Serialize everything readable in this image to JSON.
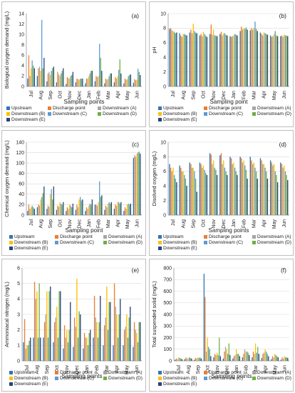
{
  "chart_data": [
    {
      "id": "a",
      "type": "bar",
      "panel_label": "(a)",
      "xlabel": "Sampling points",
      "ylabel": "Biological oxygen demand (mg/L)",
      "ylim": [
        0,
        14
      ],
      "yticks": [
        0,
        2,
        4,
        6,
        8,
        10,
        12,
        14
      ],
      "grid": false,
      "categories": [
        "Jul",
        "Aug",
        "Sep",
        "Oct",
        "Nov",
        "Dec",
        "Jan",
        "Feb",
        "Mar",
        "Apr",
        "May",
        "Jun"
      ],
      "series": [
        {
          "name": "Upstream",
          "values": [
            1.5,
            2.0,
            1.0,
            0.8,
            0.5,
            0.8,
            0.6,
            1.0,
            0.6,
            0.8,
            0.6,
            0.7
          ]
        },
        {
          "name": "Discharge point",
          "values": [
            6.0,
            3.5,
            2.5,
            2.8,
            1.8,
            1.5,
            1.5,
            2.0,
            1.5,
            1.8,
            1.5,
            1.4
          ]
        },
        {
          "name": "Downstream (A)",
          "values": [
            2.0,
            3.8,
            2.8,
            2.3,
            1.6,
            1.4,
            1.5,
            1.8,
            1.3,
            1.5,
            1.3,
            1.2
          ]
        },
        {
          "name": "Downstream (B)",
          "values": [
            3.5,
            3.0,
            2.2,
            2.0,
            1.5,
            1.3,
            2.0,
            2.0,
            1.5,
            2.0,
            1.4,
            1.3
          ]
        },
        {
          "name": "Downstream (C)",
          "values": [
            5.0,
            12.8,
            3.0,
            2.5,
            2.0,
            1.5,
            2.5,
            8.2,
            2.0,
            3.2,
            2.0,
            3.4
          ]
        },
        {
          "name": "Downstream (D)",
          "values": [
            4.0,
            3.5,
            3.5,
            3.0,
            2.2,
            1.5,
            3.0,
            5.5,
            2.5,
            5.2,
            2.2,
            2.8
          ]
        },
        {
          "name": "Downstream (E)",
          "values": [
            3.5,
            5.5,
            3.8,
            3.5,
            2.8,
            1.5,
            3.0,
            3.0,
            2.5,
            2.5,
            2.3,
            2.2
          ]
        }
      ]
    },
    {
      "id": "b",
      "type": "bar",
      "panel_label": "(b)",
      "xlabel": "Sampling point",
      "ylabel": "pH",
      "ylim": [
        0,
        10
      ],
      "yticks": [
        0,
        2,
        4,
        6,
        8,
        10
      ],
      "grid": true,
      "categories": [
        "Jul",
        "Aug",
        "Sep",
        "Oct",
        "Nov",
        "Dec",
        "Jan",
        "Feb",
        "Mar",
        "Apr",
        "May",
        "Jun"
      ],
      "series": [
        {
          "name": "Upstream",
          "values": [
            7.9,
            7.3,
            7.4,
            7.0,
            7.2,
            7.2,
            6.9,
            7.6,
            7.7,
            7.4,
            7.0,
            6.9
          ]
        },
        {
          "name": "Discharge point",
          "values": [
            8.0,
            7.0,
            7.8,
            7.2,
            8.5,
            7.5,
            6.8,
            8.2,
            8.0,
            7.2,
            6.8,
            7.0
          ]
        },
        {
          "name": "Downstream (A)",
          "values": [
            7.7,
            6.8,
            7.3,
            6.9,
            7.1,
            7.0,
            6.9,
            7.8,
            7.8,
            7.0,
            6.9,
            6.8
          ]
        },
        {
          "name": "Downstream (B)",
          "values": [
            7.6,
            7.2,
            8.6,
            7.5,
            7.8,
            7.3,
            7.0,
            8.0,
            8.0,
            7.4,
            7.2,
            7.1
          ]
        },
        {
          "name": "Downstream (C)",
          "values": [
            7.5,
            7.2,
            7.6,
            7.2,
            7.0,
            7.3,
            7.2,
            7.9,
            8.9,
            7.3,
            7.6,
            7.0
          ]
        },
        {
          "name": "Downstream (D)",
          "values": [
            7.3,
            7.1,
            7.4,
            7.0,
            7.0,
            7.1,
            7.1,
            8.1,
            7.9,
            7.2,
            7.0,
            7.0
          ]
        },
        {
          "name": "Downstream (E)",
          "values": [
            7.4,
            7.0,
            7.3,
            6.8,
            6.9,
            7.0,
            7.0,
            7.8,
            7.6,
            7.1,
            6.9,
            6.9
          ]
        }
      ]
    },
    {
      "id": "c",
      "type": "bar",
      "panel_label": "(c)",
      "xlabel": "Sampling point",
      "ylabel": "Chemical oxygen demand (mg/L)",
      "ylim": [
        0,
        140
      ],
      "yticks": [
        0,
        20,
        40,
        60,
        80,
        100,
        120,
        140
      ],
      "grid": true,
      "categories": [
        "Jul",
        "Aug",
        "Sep",
        "Oct",
        "Nov",
        "Dec",
        "Jan",
        "Feb",
        "Mar",
        "Apr",
        "May",
        "Jun"
      ],
      "series": [
        {
          "name": "Upstream",
          "values": [
            8,
            15,
            12,
            10,
            8,
            10,
            8,
            20,
            10,
            12,
            8,
            110
          ]
        },
        {
          "name": "Discharge point",
          "values": [
            20,
            20,
            18,
            18,
            15,
            20,
            15,
            20,
            18,
            20,
            15,
            115
          ]
        },
        {
          "name": "Downstream (A)",
          "values": [
            12,
            18,
            16,
            16,
            12,
            15,
            12,
            18,
            15,
            18,
            12,
            112
          ]
        },
        {
          "name": "Downstream (B)",
          "values": [
            15,
            30,
            40,
            25,
            20,
            30,
            18,
            25,
            22,
            25,
            20,
            118
          ]
        },
        {
          "name": "Downstream (C)",
          "values": [
            18,
            35,
            50,
            22,
            18,
            35,
            22,
            65,
            25,
            25,
            22,
            120
          ]
        },
        {
          "name": "Downstream (D)",
          "values": [
            15,
            42,
            30,
            20,
            15,
            28,
            20,
            35,
            22,
            22,
            20,
            122
          ]
        },
        {
          "name": "Downstream (E)",
          "values": [
            12,
            55,
            55,
            25,
            22,
            30,
            30,
            38,
            25,
            25,
            22,
            118
          ]
        }
      ]
    },
    {
      "id": "d",
      "type": "bar",
      "panel_label": "(d)",
      "xlabel": "Sampling points",
      "ylabel": "Disolved oxygen (mg/L)",
      "ylim": [
        0,
        10
      ],
      "yticks": [
        0,
        2,
        4,
        6,
        8,
        10
      ],
      "grid": true,
      "categories": [
        "Jul",
        "Aug",
        "Sep",
        "Oct",
        "Nov",
        "Dec",
        "Jan",
        "Feb",
        "Mar",
        "Apr",
        "May",
        "Jun"
      ],
      "series": [
        {
          "name": "Upstream",
          "values": [
            7.0,
            6.8,
            7.2,
            7.2,
            8.5,
            8.2,
            8.0,
            8.0,
            8.0,
            7.8,
            7.5,
            7.2
          ]
        },
        {
          "name": "Discharge point",
          "values": [
            6.5,
            6.5,
            7.0,
            7.0,
            8.3,
            8.5,
            7.8,
            7.8,
            7.5,
            7.5,
            7.2,
            7.0
          ]
        },
        {
          "name": "Downstream (A)",
          "values": [
            6.0,
            6.0,
            6.5,
            6.5,
            7.0,
            7.0,
            7.0,
            7.2,
            7.0,
            7.0,
            6.8,
            6.5
          ]
        },
        {
          "name": "Downstream (B)",
          "values": [
            6.5,
            6.0,
            6.5,
            6.8,
            7.5,
            7.5,
            7.2,
            7.5,
            7.2,
            7.0,
            7.0,
            6.8
          ]
        },
        {
          "name": "Downstream (C)",
          "values": [
            5.5,
            5.5,
            6.0,
            6.2,
            6.5,
            6.5,
            6.5,
            6.8,
            6.5,
            6.5,
            6.0,
            6.0
          ]
        },
        {
          "name": "Downstream (D)",
          "values": [
            5.0,
            5.0,
            5.0,
            5.8,
            6.2,
            6.0,
            6.0,
            6.2,
            6.0,
            6.0,
            5.5,
            5.5
          ]
        },
        {
          "name": "Downstream (E)",
          "values": [
            4.5,
            4.0,
            3.2,
            5.5,
            5.5,
            5.5,
            5.5,
            5.0,
            5.0,
            5.0,
            4.5,
            4.8
          ]
        }
      ]
    },
    {
      "id": "e",
      "type": "bar",
      "panel_label": "(e)",
      "xlabel": "Sampling points",
      "ylabel": "Ammoniacal nitrogen (mg/L)",
      "ylim": [
        0,
        6
      ],
      "yticks": [
        0,
        1,
        2,
        3,
        4,
        5,
        6
      ],
      "grid": true,
      "categories": [
        "Jul",
        "Aug",
        "Sep",
        "Oct",
        "Nov",
        "Dec",
        "Jan",
        "Feb",
        "Mar",
        "Apr",
        "May",
        "Jun"
      ],
      "series": [
        {
          "name": "Upstream",
          "values": [
            1.2,
            1.5,
            1.5,
            1.2,
            0.8,
            0.9,
            0.8,
            1.5,
            1.0,
            1.0,
            1.0,
            0.9
          ]
        },
        {
          "name": "Discharge point",
          "values": [
            2.7,
            5.1,
            2.5,
            2.5,
            2.3,
            2.8,
            1.8,
            4.2,
            2.3,
            5.0,
            2.0,
            2.5
          ]
        },
        {
          "name": "Downstream (A)",
          "values": [
            0.8,
            4.0,
            3.0,
            2.8,
            1.5,
            2.2,
            1.5,
            2.8,
            2.8,
            3.5,
            2.2,
            2.0
          ]
        },
        {
          "name": "Downstream (B)",
          "values": [
            1.0,
            4.5,
            4.5,
            3.5,
            2.0,
            5.3,
            1.5,
            2.5,
            4.8,
            3.0,
            3.0,
            1.8
          ]
        },
        {
          "name": "Downstream (C)",
          "values": [
            1.0,
            1.5,
            1.5,
            1.5,
            1.2,
            1.5,
            1.0,
            1.5,
            2.0,
            1.5,
            1.5,
            1.2
          ]
        },
        {
          "name": "Downstream (D)",
          "values": [
            1.3,
            5.0,
            4.5,
            4.5,
            2.0,
            3.2,
            1.8,
            2.5,
            3.8,
            3.0,
            2.8,
            2.5
          ]
        },
        {
          "name": "Downstream (E)",
          "values": [
            1.5,
            1.5,
            4.8,
            4.5,
            3.8,
            3.0,
            2.0,
            4.2,
            3.8,
            4.0,
            3.5,
            2.5
          ]
        }
      ]
    },
    {
      "id": "f",
      "type": "bar",
      "panel_label": "(f)",
      "xlabel": "Sampling points",
      "ylabel": "Total suspended solid (mg/L)",
      "ylim": [
        0,
        800
      ],
      "yticks": [
        0,
        100,
        200,
        300,
        400,
        500,
        600,
        700,
        800
      ],
      "grid": true,
      "categories": [
        "Jul",
        "Aug",
        "Sep",
        "Oct",
        "Nov",
        "Dec",
        "Jan",
        "Feb",
        "Mar",
        "Apr",
        "May",
        "Jun"
      ],
      "series": [
        {
          "name": "Upstream",
          "values": [
            10,
            15,
            10,
            750,
            30,
            20,
            20,
            30,
            30,
            25,
            15,
            10
          ]
        },
        {
          "name": "Discharge point",
          "values": [
            20,
            30,
            25,
            550,
            60,
            80,
            40,
            60,
            80,
            60,
            40,
            30
          ]
        },
        {
          "name": "Downstream (A)",
          "values": [
            15,
            20,
            20,
            80,
            50,
            120,
            50,
            100,
            60,
            70,
            30,
            20
          ]
        },
        {
          "name": "Downstream (B)",
          "values": [
            30,
            20,
            30,
            200,
            70,
            100,
            100,
            80,
            150,
            100,
            60,
            40
          ]
        },
        {
          "name": "Downstream (C)",
          "values": [
            25,
            30,
            25,
            120,
            50,
            60,
            60,
            80,
            70,
            80,
            50,
            30
          ]
        },
        {
          "name": "Downstream (D)",
          "values": [
            20,
            25,
            30,
            100,
            200,
            150,
            60,
            70,
            120,
            60,
            40,
            30
          ]
        },
        {
          "name": "Downstream (E)",
          "values": [
            15,
            20,
            20,
            40,
            40,
            50,
            40,
            50,
            60,
            40,
            30,
            25
          ]
        }
      ]
    }
  ],
  "colors": [
    "#2e75b6",
    "#ed7d31",
    "#a5a5a5",
    "#ffc000",
    "#5b9bd5",
    "#70ad47",
    "#264478"
  ]
}
